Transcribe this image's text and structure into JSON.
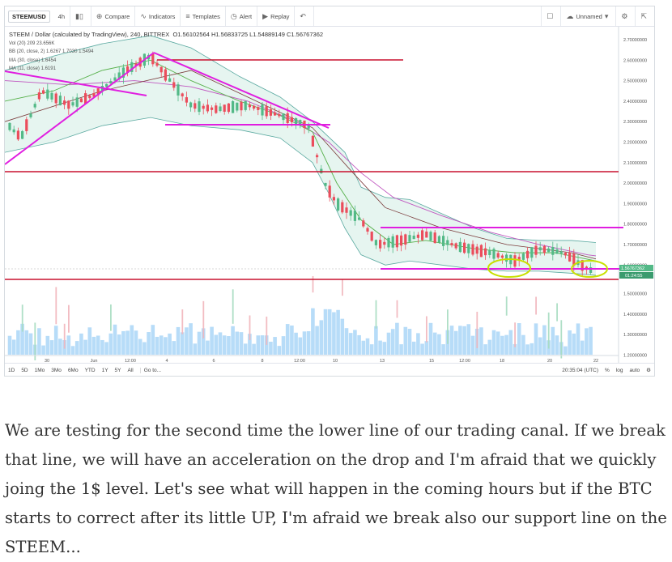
{
  "toolbar": {
    "symbol": "STEEMUSD",
    "interval": "4h",
    "compare_label": "Compare",
    "indicators_label": "Indicators",
    "templates_label": "Templates",
    "alert_label": "Alert",
    "replay_label": "Replay",
    "layout_name": "Unnamed"
  },
  "legend": {
    "title": "STEEM / Dollar (calculated by TradingView), 240, BITTREX",
    "ohlc": "O1.56102564 H1.56833725 L1.54889149 C1.56767362",
    "vol_label": "Vol (20)",
    "vol_values": "209  23.656K",
    "bb_label": "BB (20, close, 2)",
    "bb_values": "1.6267  1.7030  1.5494",
    "ma1_label": "MA (30, close)",
    "ma1_value": "1.6454",
    "ma2_label": "MA (11, close)",
    "ma2_value": "1.6191"
  },
  "price_axis": {
    "ticks": [
      "2.70000000",
      "2.60000000",
      "2.50000000",
      "2.40000000",
      "2.30000000",
      "2.20000000",
      "2.10000000",
      "2.00000000",
      "1.90000000",
      "1.80000000",
      "1.70000000",
      "1.60000000",
      "1.50000000",
      "1.40000000",
      "1.30000000",
      "1.20000000"
    ],
    "last_price": "1.56767362",
    "countdown": "01:24:55"
  },
  "time_axis": {
    "labels": [
      "30",
      "Jun",
      "12:00",
      "4",
      "6",
      "8",
      "12:00",
      "10",
      "13",
      "15",
      "12:00",
      "18",
      "20",
      "22"
    ]
  },
  "bottom_bar": {
    "timeframes": [
      "1D",
      "5D",
      "1Mo",
      "3Mo",
      "6Mo",
      "YTD",
      "1Y",
      "5Y",
      "All"
    ],
    "goto_label": "Go to...",
    "clock": "20:35:04 (UTC)",
    "percent_label": "%",
    "log_label": "log",
    "auto_label": "auto"
  },
  "colors": {
    "up": "#53b987",
    "down": "#eb4d5c",
    "red_line": "#c8102e",
    "magenta_line": "#e01ee0",
    "highlight": "#c8e000",
    "bb_fill": "#e6f5f0",
    "volume": "#9fd0f5"
  },
  "article": {
    "text": "We are testing for the second time the lower line of our trading canal. If we break that line, we will have an acceleration on the drop and I'm afraid that we quickly joing the 1$ level. Let's see what will happen in the coming hours but if the BTC starts to correct after its little UP, I'm afraid we break also our support line on the STEEM..."
  }
}
